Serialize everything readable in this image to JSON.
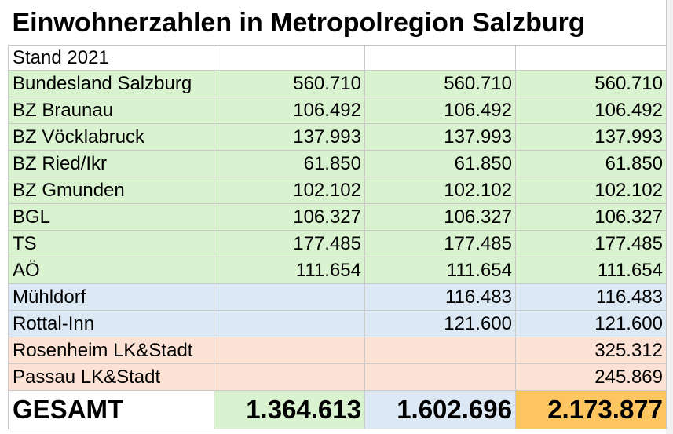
{
  "title": "Einwohnerzahlen in Metropolregion Salzburg",
  "subtitle": "Stand 2021",
  "table": {
    "rows": [
      [
        "Bundesland Salzburg",
        "560.710",
        "560.710",
        "560.710"
      ],
      [
        "BZ Braunau",
        "106.492",
        "106.492",
        "106.492"
      ],
      [
        "BZ Vöcklabruck",
        "137.993",
        "137.993",
        "137.993"
      ],
      [
        "BZ Ried/Ikr",
        "61.850",
        "61.850",
        "61.850"
      ],
      [
        "BZ Gmunden",
        "102.102",
        "102.102",
        "102.102"
      ],
      [
        "BGL",
        "106.327",
        "106.327",
        "106.327"
      ],
      [
        "TS",
        "177.485",
        "177.485",
        "177.485"
      ],
      [
        "AÖ",
        "111.654",
        "111.654",
        "111.654"
      ],
      [
        "Mühldorf",
        null,
        "116.483",
        "116.483"
      ],
      [
        "Rottal-Inn",
        null,
        "121.600",
        "121.600"
      ],
      [
        "Rosenheim LK&Stadt",
        null,
        null,
        "325.312"
      ],
      [
        "Passau LK&Stadt",
        null,
        null,
        "245.869"
      ]
    ],
    "total": [
      "GESAMT",
      "1.364.613",
      "1.602.696",
      "2.173.877"
    ]
  }
}
